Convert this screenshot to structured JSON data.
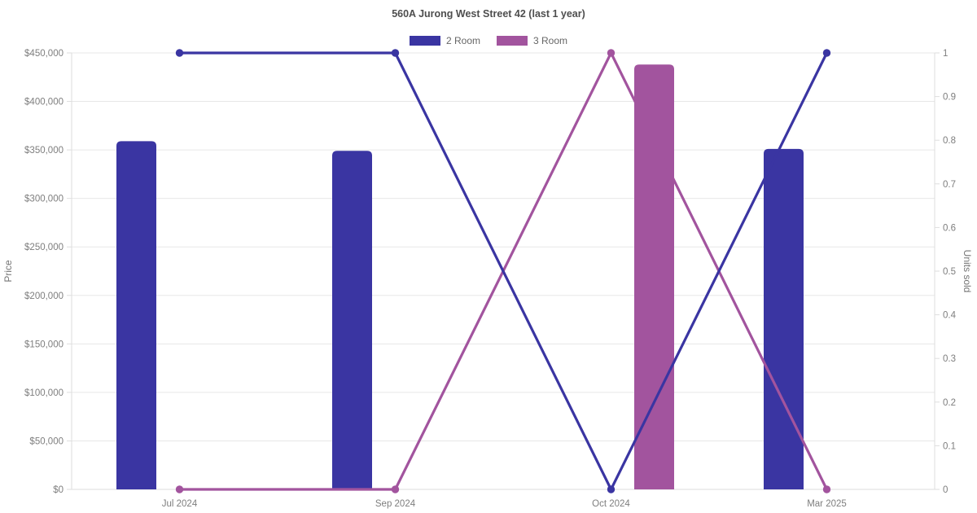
{
  "chart_data": {
    "type": "combo-bar-line",
    "title": "560A Jurong West Street 42 (last 1 year)",
    "background": "#ffffff",
    "categories": [
      "Jul 2024",
      "Sep 2024",
      "Oct 2024",
      "Mar 2025"
    ],
    "series": [
      {
        "name": "2 Room",
        "color": "#3a35a2",
        "bar_metric": "price",
        "line_metric": "units_sold",
        "prices": [
          359000,
          349000,
          null,
          351000
        ],
        "units_sold": [
          1,
          1,
          0,
          1
        ]
      },
      {
        "name": "3 Room",
        "color": "#a2549e",
        "bar_metric": "price",
        "line_metric": "units_sold",
        "prices": [
          null,
          null,
          438000,
          null
        ],
        "units_sold": [
          0,
          0,
          1,
          0
        ]
      }
    ],
    "left_axis": {
      "title": "Price",
      "min": 0,
      "max": 450000,
      "step": 50000,
      "tick_labels": [
        "$0",
        "$50,000",
        "$100,000",
        "$150,000",
        "$200,000",
        "$250,000",
        "$300,000",
        "$350,000",
        "$400,000",
        "$450,000"
      ]
    },
    "right_axis": {
      "title": "Units sold",
      "min": 0,
      "max": 1,
      "step": 0.1,
      "tick_labels": [
        "0",
        "0.1",
        "0.2",
        "0.3",
        "0.4",
        "0.5",
        "0.6",
        "0.7",
        "0.8",
        "0.9",
        "1"
      ]
    },
    "legend": {
      "position": "top",
      "items": [
        {
          "label": "2 Room",
          "color": "#3a35a2"
        },
        {
          "label": "3 Room",
          "color": "#a2549e"
        }
      ]
    },
    "grid": "horizontal-only",
    "grid_color": "#e7e7e7",
    "axis_line_color": "#dedede",
    "tick_label_color": "#7e7e7e"
  }
}
